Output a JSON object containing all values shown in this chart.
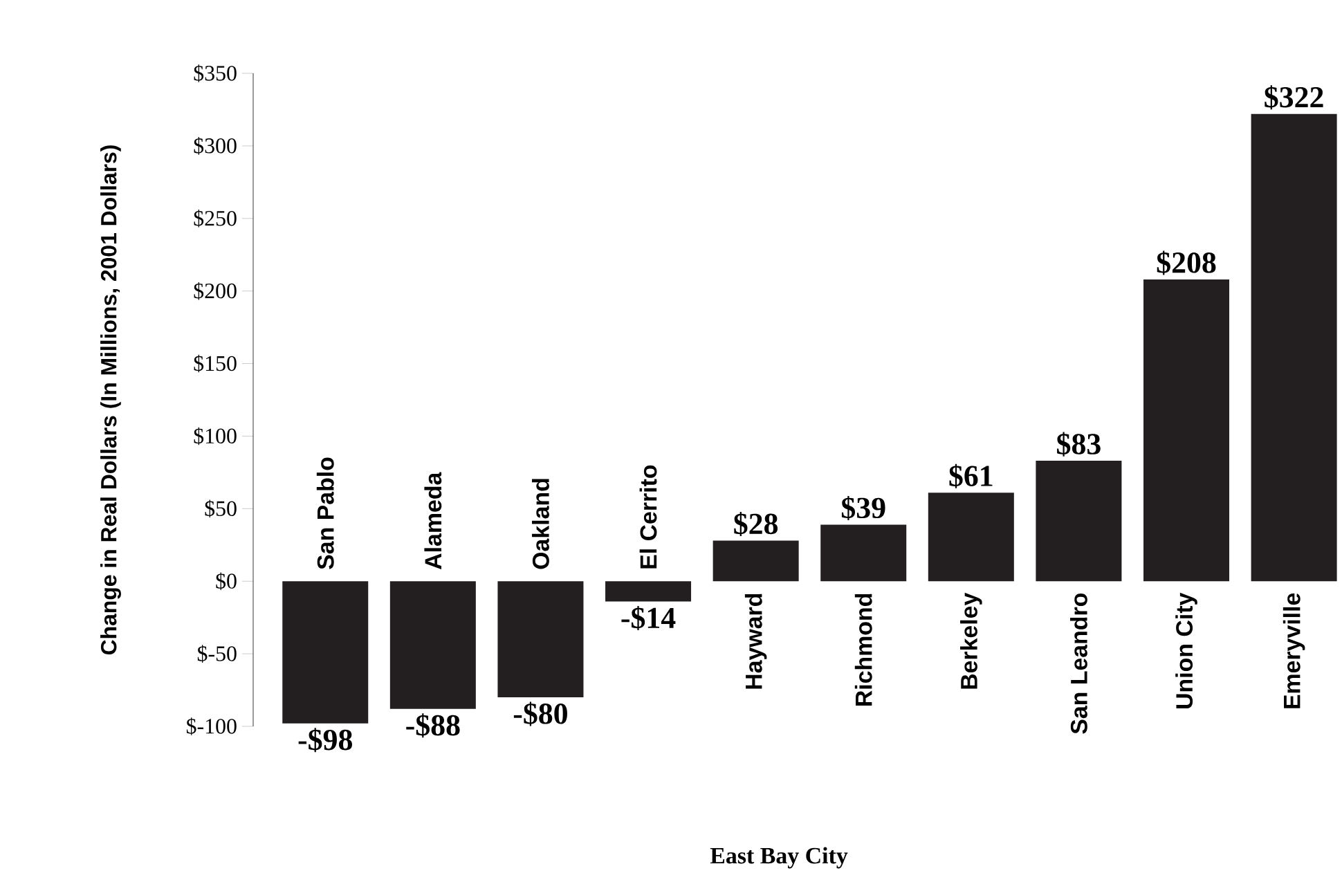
{
  "chart_data": {
    "type": "bar",
    "xlabel": "East Bay City",
    "ylabel": "Change in Real Dollars (In Millions, 2001 Dollars)",
    "categories": [
      "San Pablo",
      "Alameda",
      "Oakland",
      "El Cerrito",
      "Hayward",
      "Richmond",
      "Berkeley",
      "San Leandro",
      "Union City",
      "Emeryville"
    ],
    "values": [
      -98,
      -88,
      -80,
      -14,
      28,
      39,
      61,
      83,
      208,
      322
    ],
    "value_labels": [
      "-$98",
      "-$88",
      "-$80",
      "-$14",
      "$28",
      "$39",
      "$61",
      "$83",
      "$208",
      "$322"
    ],
    "color": "#231f20",
    "ylim": [
      -100,
      350
    ],
    "yticks": [
      {
        "value": -100,
        "label": "$-100"
      },
      {
        "value": -50,
        "label": "$-50"
      },
      {
        "value": 0,
        "label": "$0"
      },
      {
        "value": 50,
        "label": "$50"
      },
      {
        "value": 100,
        "label": "$100"
      },
      {
        "value": 150,
        "label": "$150"
      },
      {
        "value": 200,
        "label": "$200"
      },
      {
        "value": 250,
        "label": "$250"
      },
      {
        "value": 300,
        "label": "$300"
      },
      {
        "value": 350,
        "label": "$350"
      }
    ],
    "grid": false
  }
}
